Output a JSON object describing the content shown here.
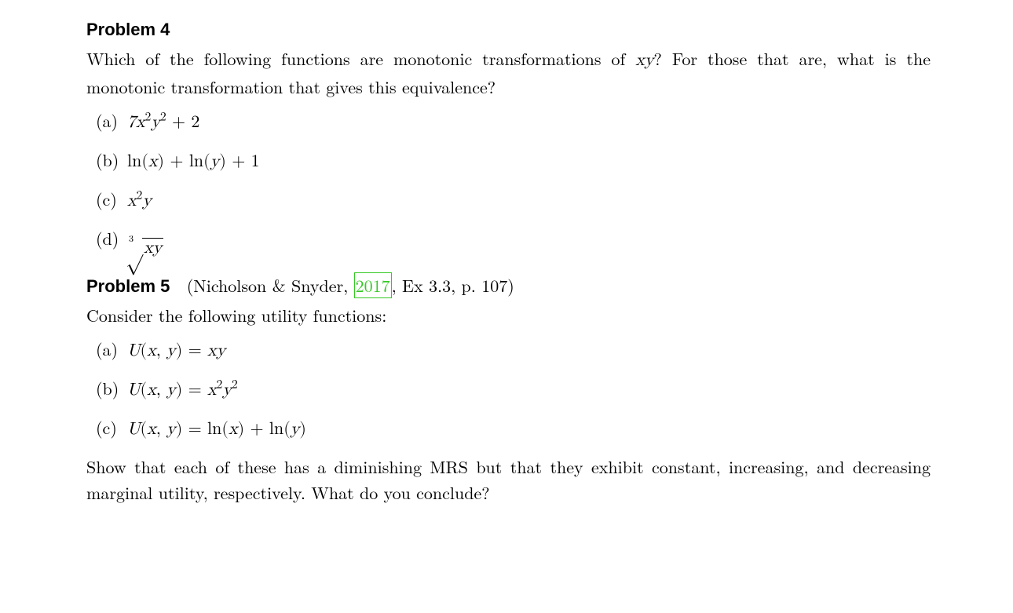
{
  "colors": {
    "text": "#000000",
    "background": "#ffffff",
    "cite_box": "#34c924"
  },
  "typography": {
    "body_font": "serif",
    "body_size_pt": 16,
    "heading_font": "sans-serif",
    "heading_weight": "bold"
  },
  "problems": [
    {
      "heading": "Problem 4",
      "question_html": "Which of the following functions are monotonic transformations of <span class=\"math\">xy</span>? For those that are, what is the monotonic transformation that gives this equivalence?",
      "items": [
        {
          "label": "(a)",
          "math_html": "7<span class=\"math\">x</span><sup>2</sup><span class=\"math\">y</span><sup>2</sup> <span class=\"rm\">+ 2</span>"
        },
        {
          "label": "(b)",
          "math_html": "<span class=\"rm\">ln(</span><span class=\"math\">x</span><span class=\"rm\">) + ln(</span><span class=\"math\">y</span><span class=\"rm\">) + 1</span>"
        },
        {
          "label": "(c)",
          "math_html": "<span class=\"math\">x</span><sup>2</sup><span class=\"math\">y</span>"
        },
        {
          "label": "(d)",
          "math_html": "<span class=\"sqrt\"><span class=\"idx\">3</span><span class=\"surd\">√</span><span class=\"radicand\"><span class=\"math\">xy</span></span></span>"
        }
      ]
    },
    {
      "heading": "Problem 5",
      "source_prefix": "(Nicholson & Snyder, ",
      "source_year": "2017",
      "source_suffix": ", Ex 3.3, p. 107)",
      "question_html": "Consider the following utility functions:",
      "items": [
        {
          "label": "(a)",
          "math_html": "<span class=\"math\">U</span><span class=\"rm\">(</span><span class=\"math\">x</span><span class=\"rm\">, </span><span class=\"math\">y</span><span class=\"rm\">) = </span><span class=\"math\">xy</span>"
        },
        {
          "label": "(b)",
          "math_html": "<span class=\"math\">U</span><span class=\"rm\">(</span><span class=\"math\">x</span><span class=\"rm\">, </span><span class=\"math\">y</span><span class=\"rm\">) = </span><span class=\"math\">x</span><sup>2</sup><span class=\"math\">y</span><sup>2</sup>"
        },
        {
          "label": "(c)",
          "math_html": "<span class=\"math\">U</span><span class=\"rm\">(</span><span class=\"math\">x</span><span class=\"rm\">, </span><span class=\"math\">y</span><span class=\"rm\">) = ln(</span><span class=\"math\">x</span><span class=\"rm\">) + ln(</span><span class=\"math\">y</span><span class=\"rm\">)</span>"
        }
      ],
      "trailer_html": "Show that each of these has a diminishing MRS but that they exhibit constant, increasing, and decreasing marginal utility, respectively. What do you conclude?"
    }
  ]
}
